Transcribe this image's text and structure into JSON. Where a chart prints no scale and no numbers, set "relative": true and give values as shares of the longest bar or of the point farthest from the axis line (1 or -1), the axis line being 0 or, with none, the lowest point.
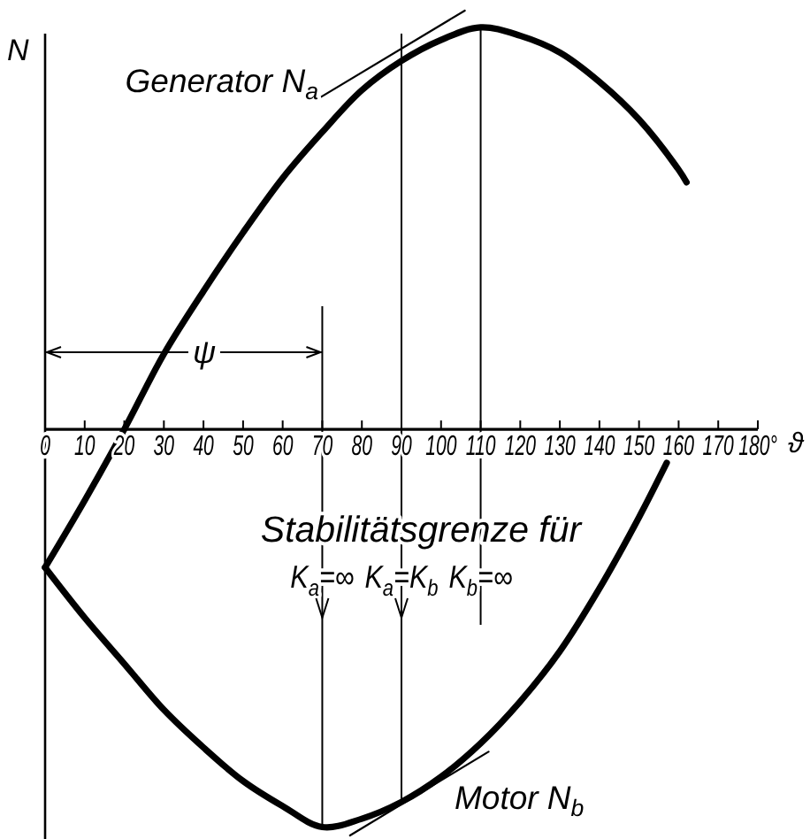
{
  "chart_data": {
    "type": "line",
    "relative": true,
    "xlabel": "ϑ",
    "ylabel": "N",
    "xlim": [
      0,
      180
    ],
    "xticks": [
      0,
      10,
      20,
      30,
      40,
      50,
      60,
      70,
      80,
      90,
      100,
      110,
      120,
      130,
      140,
      150,
      160,
      170,
      {
        "value": 180,
        "label": "180°"
      }
    ],
    "series": [
      {
        "name": "Generator N$_{a}$",
        "color": "#000000",
        "x": [
          0,
          10,
          20,
          30,
          40,
          50,
          60,
          70,
          80,
          90,
          100,
          110,
          120,
          130,
          140,
          150,
          160,
          162
        ],
        "values": [
          -0.33,
          -0.17,
          0,
          0.18,
          0.33,
          0.47,
          0.6,
          0.71,
          0.81,
          0.88,
          0.93,
          0.96,
          0.94,
          0.9,
          0.83,
          0.74,
          0.62,
          0.59
        ]
      },
      {
        "name": "Motor N$_{b}$",
        "color": "#000000",
        "x": [
          0,
          10,
          20,
          30,
          40,
          50,
          60,
          70,
          80,
          90,
          100,
          110,
          120,
          130,
          140,
          150,
          157
        ],
        "values": [
          -0.33,
          -0.45,
          -0.56,
          -0.67,
          -0.76,
          -0.84,
          -0.9,
          -0.95,
          -0.93,
          -0.89,
          -0.83,
          -0.75,
          -0.65,
          -0.53,
          -0.38,
          -0.21,
          -0.08
        ]
      },
      {
        "color": "#000000",
        "x": [
          69,
          106
        ],
        "values": [
          0.79,
          1
        ]
      },
      {
        "color": "#000000",
        "x": [
          77,
          112
        ],
        "values": [
          -0.97,
          -0.77
        ]
      }
    ],
    "ref_lines": [
      {
        "axis": "x",
        "value": 70,
        "label": "K$_{a}$=∞"
      },
      {
        "axis": "x",
        "value": 90,
        "label": "K$_{a}$=K$_{b}$"
      },
      {
        "axis": "x",
        "value": 110,
        "label": "K$_{b}$=∞"
      }
    ],
    "annotations": [
      "Stabilitätsgrenze für",
      "ψ"
    ]
  }
}
